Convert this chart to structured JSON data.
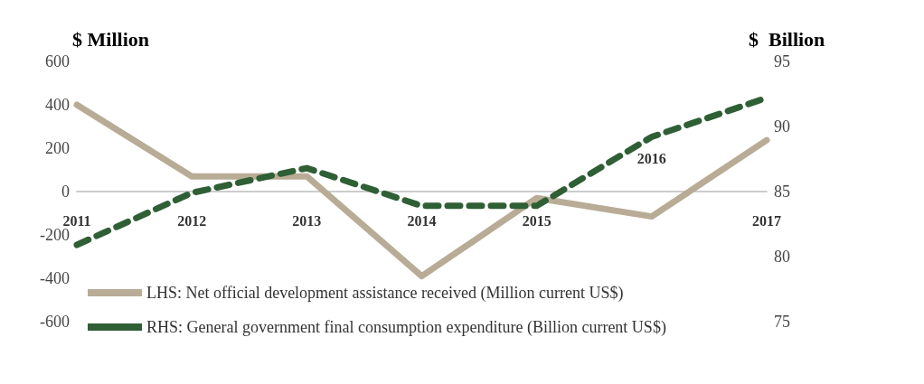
{
  "chart_data": {
    "type": "line",
    "ylabel": "$ Million",
    "y2label": "$  Billion",
    "categories": [
      "2011",
      "2012",
      "2013",
      "2014",
      "2015",
      "2016",
      "2017"
    ],
    "series": [
      {
        "name": "LHS: Net official development assistance received (Million current US$)",
        "color": "#b8ac96",
        "values": [
          400,
          70,
          70,
          -390,
          -30,
          -115,
          237
        ],
        "line_style": "solid"
      },
      {
        "name": "RHS: General government final consumption expenditure (Billion current US$)",
        "color": "#2f5f35",
        "values": [
          80.9,
          84.9,
          86.8,
          83.9,
          83.9,
          89.2,
          92.2
        ],
        "axis": "y2",
        "line_style": "dashed"
      }
    ],
    "ylim": [
      -600,
      600
    ],
    "yticks": [
      -600,
      -400,
      -200,
      0,
      200,
      400,
      600
    ],
    "y2lim": [
      75,
      95
    ],
    "y2ticks": [
      75,
      80,
      85,
      90,
      95
    ],
    "grid": false,
    "legend": "bottom left",
    "marker": "none"
  }
}
